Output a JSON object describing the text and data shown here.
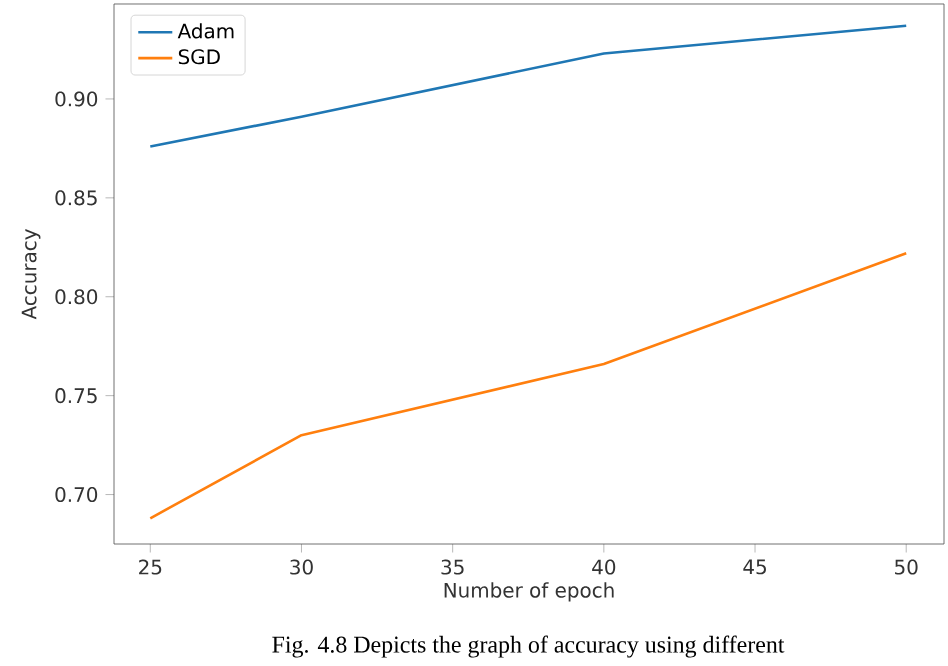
{
  "chart_data": {
    "type": "line",
    "xlabel": "Number of epoch",
    "ylabel": "Accuracy",
    "x": [
      25,
      30,
      40,
      50
    ],
    "series": [
      {
        "name": "Adam",
        "color": "#1f77b4",
        "values": [
          0.876,
          0.891,
          0.923,
          0.937
        ]
      },
      {
        "name": "SGD",
        "color": "#ff7f0e",
        "values": [
          0.688,
          0.73,
          0.766,
          0.822
        ]
      }
    ],
    "xlim": [
      23.8,
      51.25
    ],
    "ylim": [
      0.675,
      0.948
    ],
    "xticks": [
      25,
      30,
      35,
      40,
      45,
      50
    ],
    "yticks": [
      {
        "value": 0.7,
        "label": "0.70"
      },
      {
        "value": 0.75,
        "label": "0.75"
      },
      {
        "value": 0.8,
        "label": "0.80"
      },
      {
        "value": 0.85,
        "label": "0.85"
      },
      {
        "value": 0.9,
        "label": "0.90"
      }
    ],
    "legend": "top left",
    "grid": false,
    "marker": "none",
    "line_style": "solid",
    "annotations": [
      "Fig. 4.8 Depicts the graph of accuracy using different"
    ]
  }
}
